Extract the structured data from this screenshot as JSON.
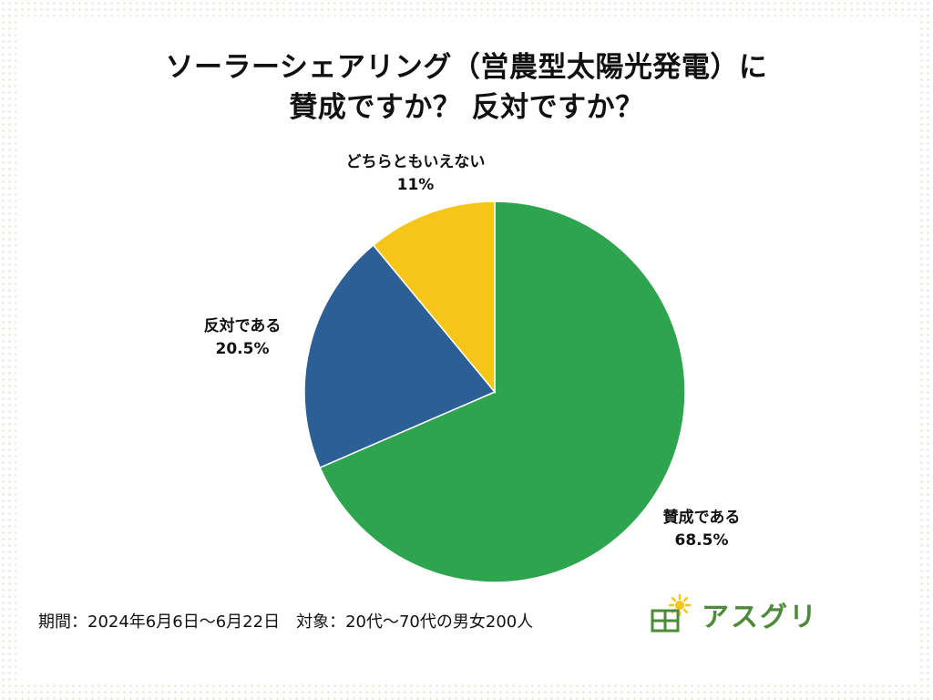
{
  "title": {
    "line1": "ソーラーシェアリング（営農型太陽光発電）に",
    "line2": "賛成ですか？ 反対ですか？"
  },
  "chart_data": {
    "type": "pie",
    "title": "ソーラーシェアリング（営農型太陽光発電）に賛成ですか？ 反対ですか？",
    "slices": [
      {
        "label": "賛成である",
        "value": 68.5,
        "display": "68.5%",
        "color": "#2ea44f"
      },
      {
        "label": "反対である",
        "value": 20.5,
        "display": "20.5%",
        "color": "#2d5f97"
      },
      {
        "label": "どちらともいえない",
        "value": 11,
        "display": "11%",
        "color": "#f5c519"
      }
    ],
    "start": "12 o'clock",
    "direction": "clockwise"
  },
  "footer": {
    "note": "期間：2024年6月6日～6月22日　対象：20代～70代の男女200人"
  },
  "logo": {
    "text": "アスグリ",
    "color": "#4e8a3a",
    "sun_color": "#f5c519"
  }
}
